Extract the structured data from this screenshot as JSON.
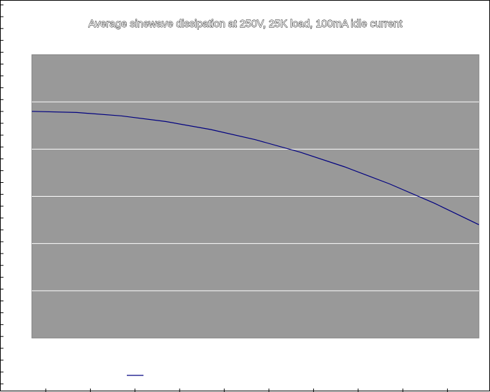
{
  "chart_data": {
    "type": "line",
    "title": "Average sinewave dissipation at 250V, 25K load, 100mA idle current",
    "xlabel": "",
    "ylabel": "",
    "x_range": [
      0,
      1
    ],
    "ylim": [
      0,
      1
    ],
    "grid": true,
    "legend_placement": "bottom",
    "series": [
      {
        "color": "#000080",
        "x": [
          0,
          0.1,
          0.2,
          0.3,
          0.4,
          0.5,
          0.6,
          0.7,
          0.8,
          0.9,
          1.0
        ],
        "y": [
          0.8,
          0.796,
          0.784,
          0.764,
          0.736,
          0.7,
          0.656,
          0.604,
          0.544,
          0.476,
          0.4
        ]
      }
    ],
    "colors": {
      "plot_background": "#999999",
      "gridline": "#ffffff",
      "series_line": "#000080"
    }
  }
}
